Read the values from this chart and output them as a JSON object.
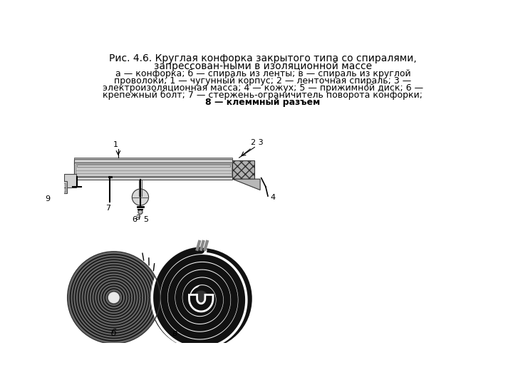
{
  "title_line1": "Рис. 4.6. Круглая конфорка закрытого типа со спиралями,",
  "title_line2": "запрессован-ными в изоляционной массе",
  "caption_line1": "а — конфорка; б — спираль из ленты; в — спираль из круглой",
  "caption_line2": "проволоки; 1 — чугунный корпус; 2 — ленточная спираль; 3 —",
  "caption_line3": "электроизоляционная масса; 4 — кожух; 5 — прижимной диск; 6 —",
  "caption_line4": "крепежный болт; 7 — стержень-ограничитель поворота конфорки;",
  "caption_line5_bold": "8 — клеммный разъем",
  "bg_color": "#ffffff",
  "text_color": "#000000"
}
